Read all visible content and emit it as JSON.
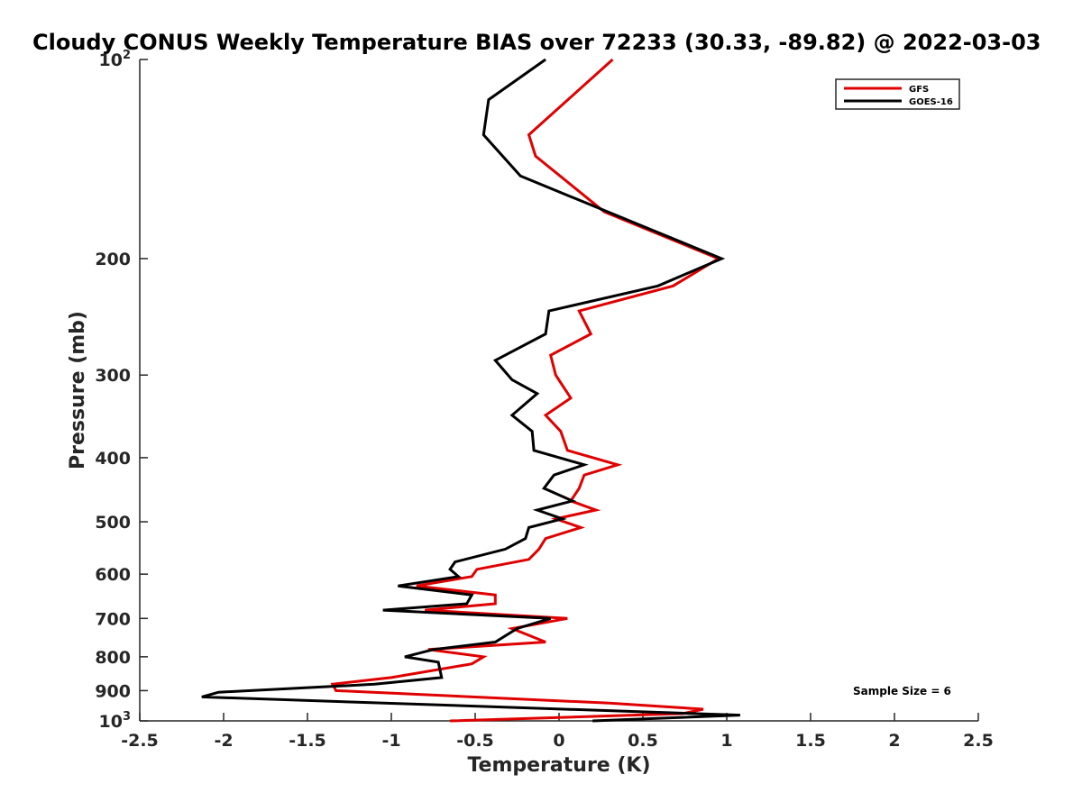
{
  "chart_data": {
    "type": "line",
    "title": "Cloudy CONUS Weekly Temperature BIAS over 72233 (30.33, -89.82) @ 2022-03-03",
    "xlabel": "Temperature (K)",
    "ylabel": "Pressure (mb)",
    "xlim": [
      -2.5,
      2.5
    ],
    "ylim": [
      100,
      1000
    ],
    "yscale": "log",
    "y_reversed": true,
    "x_ticks": [
      "-2.5",
      "-2",
      "-1.5",
      "-1",
      "-0.5",
      "0",
      "0.5",
      "1",
      "1.5",
      "2",
      "2.5"
    ],
    "y_ticks": [
      {
        "value": 100,
        "base": "10",
        "exp": "2"
      },
      {
        "value": 200,
        "label": "200"
      },
      {
        "value": 300,
        "label": "300"
      },
      {
        "value": 400,
        "label": "400"
      },
      {
        "value": 500,
        "label": "500"
      },
      {
        "value": 600,
        "label": "600"
      },
      {
        "value": 700,
        "label": "700"
      },
      {
        "value": 800,
        "label": "800"
      },
      {
        "value": 900,
        "label": "900"
      },
      {
        "value": 1000,
        "base": "10",
        "exp": "3"
      }
    ],
    "legend": {
      "location": "top-right"
    },
    "annotation": "Sample Size = 6",
    "series": [
      {
        "name": "GFS",
        "color": "#e00000",
        "points": [
          [
            0.32,
            100
          ],
          [
            -0.18,
            130
          ],
          [
            -0.14,
            140
          ],
          [
            0.27,
            170
          ],
          [
            0.95,
            200
          ],
          [
            0.68,
            220
          ],
          [
            0.12,
            240
          ],
          [
            0.19,
            260
          ],
          [
            -0.05,
            280
          ],
          [
            -0.02,
            300
          ],
          [
            0.07,
            325
          ],
          [
            -0.08,
            345
          ],
          [
            0.01,
            365
          ],
          [
            0.05,
            390
          ],
          [
            0.35,
            410
          ],
          [
            0.15,
            425
          ],
          [
            0.12,
            445
          ],
          [
            0.07,
            465
          ],
          [
            0.22,
            480
          ],
          [
            -0.02,
            495
          ],
          [
            0.13,
            510
          ],
          [
            -0.08,
            530
          ],
          [
            -0.12,
            550
          ],
          [
            -0.18,
            570
          ],
          [
            -0.49,
            590
          ],
          [
            -0.52,
            605
          ],
          [
            -0.85,
            625
          ],
          [
            -0.38,
            645
          ],
          [
            -0.38,
            665
          ],
          [
            -0.8,
            680
          ],
          [
            0.05,
            700
          ],
          [
            -0.28,
            725
          ],
          [
            -0.08,
            760
          ],
          [
            -0.78,
            780
          ],
          [
            -0.45,
            800
          ],
          [
            -0.52,
            820
          ],
          [
            -1.0,
            860
          ],
          [
            -1.35,
            880
          ],
          [
            -1.33,
            900
          ],
          [
            0.3,
            940
          ],
          [
            0.86,
            960
          ],
          [
            0.74,
            975
          ],
          [
            -0.65,
            1000
          ]
        ]
      },
      {
        "name": "GOES-16",
        "color": "#000000",
        "points": [
          [
            -0.08,
            100
          ],
          [
            -0.42,
            115
          ],
          [
            -0.45,
            130
          ],
          [
            -0.23,
            150
          ],
          [
            0.97,
            200
          ],
          [
            0.59,
            220
          ],
          [
            -0.06,
            240
          ],
          [
            -0.08,
            260
          ],
          [
            -0.38,
            285
          ],
          [
            -0.28,
            305
          ],
          [
            -0.13,
            320
          ],
          [
            -0.28,
            345
          ],
          [
            -0.16,
            365
          ],
          [
            -0.15,
            390
          ],
          [
            0.15,
            410
          ],
          [
            -0.03,
            425
          ],
          [
            -0.09,
            445
          ],
          [
            0.08,
            465
          ],
          [
            -0.13,
            480
          ],
          [
            0.02,
            495
          ],
          [
            -0.18,
            510
          ],
          [
            -0.2,
            530
          ],
          [
            -0.32,
            550
          ],
          [
            -0.62,
            575
          ],
          [
            -0.65,
            590
          ],
          [
            -0.6,
            605
          ],
          [
            -0.96,
            625
          ],
          [
            -0.52,
            645
          ],
          [
            -0.55,
            665
          ],
          [
            -1.05,
            680
          ],
          [
            -0.05,
            700
          ],
          [
            -0.25,
            725
          ],
          [
            -0.38,
            760
          ],
          [
            -0.75,
            780
          ],
          [
            -0.92,
            800
          ],
          [
            -0.72,
            815
          ],
          [
            -0.7,
            860
          ],
          [
            -1.1,
            880
          ],
          [
            -2.03,
            905
          ],
          [
            -2.13,
            920
          ],
          [
            1.08,
            980
          ],
          [
            0.2,
            1000
          ]
        ]
      }
    ]
  }
}
